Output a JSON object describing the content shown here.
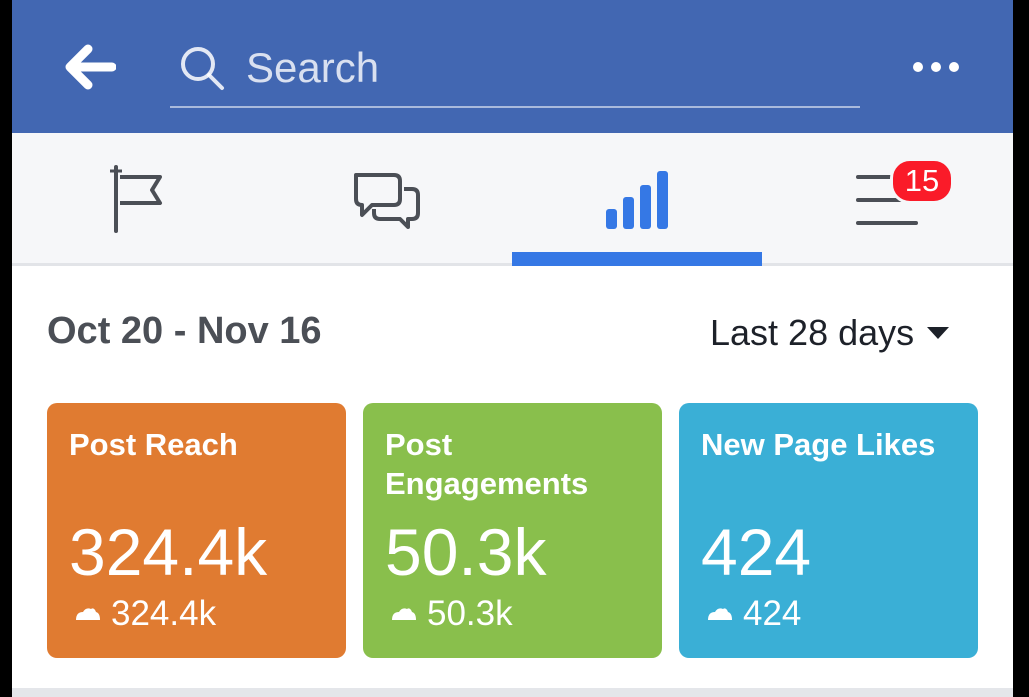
{
  "header": {
    "search_placeholder": "Search",
    "background_color": "#4267b2"
  },
  "tabs": [
    {
      "icon": "flag-icon",
      "active": false
    },
    {
      "icon": "chat-bubbles-icon",
      "active": false
    },
    {
      "icon": "bar-chart-icon",
      "active": true
    },
    {
      "icon": "menu-icon",
      "active": false,
      "badge": "15"
    }
  ],
  "insights": {
    "date_range": "Oct 20 - Nov 16",
    "period_label": "Last 28 days",
    "cards": [
      {
        "title": "Post Reach",
        "value": "324.4k",
        "change": "324.4k",
        "color": "#e07b31"
      },
      {
        "title": "Post Engagements",
        "value": "50.3k",
        "change": "50.3k",
        "color": "#89bf4c"
      },
      {
        "title": "New Page Likes",
        "value": "424",
        "change": "424",
        "color": "#3aafd6"
      }
    ]
  },
  "colors": {
    "accent": "#3578e5",
    "badge": "#fa1b29"
  }
}
